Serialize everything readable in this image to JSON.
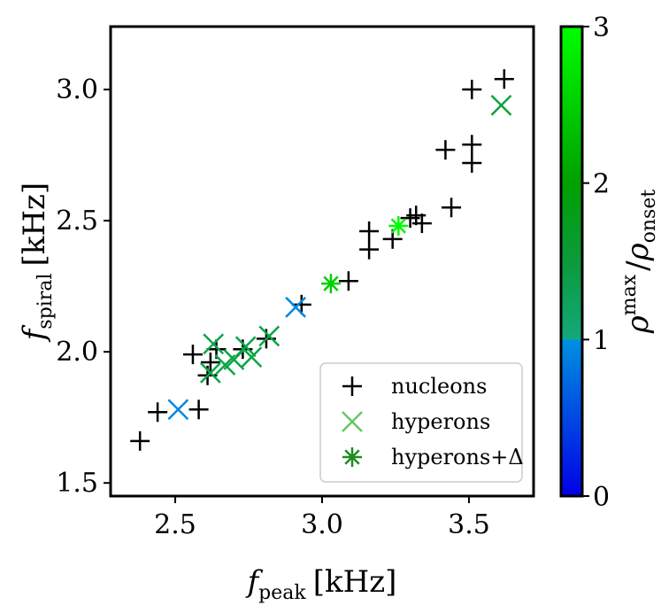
{
  "chart_data": {
    "type": "scatter",
    "xlabel": "f_peak [kHz]",
    "ylabel": "f_spiral [kHz]",
    "xlabel_parts": {
      "symbol": "f",
      "sub": "peak",
      "unit": "[kHz]"
    },
    "ylabel_parts": {
      "symbol": "f",
      "sub": "spiral",
      "unit": "[kHz]"
    },
    "xlim": [
      2.28,
      3.72
    ],
    "ylim": [
      1.45,
      3.24
    ],
    "xticks": [
      2.5,
      3.0,
      3.5
    ],
    "yticks": [
      1.5,
      2.0,
      2.5,
      3.0
    ],
    "xtick_labels": [
      "2.5",
      "3.0",
      "3.5"
    ],
    "ytick_labels": [
      "1.5",
      "2.0",
      "2.5",
      "3.0"
    ],
    "grid": false,
    "legend_position": "lower-right",
    "colorbar": {
      "label": "ρ^max / ρ_onset",
      "label_parts": {
        "num": "ρ",
        "num_sup": "max",
        "den": "ρ",
        "den_sub": "onset"
      },
      "range": [
        0,
        3
      ],
      "ticks": [
        0,
        1,
        2,
        3
      ],
      "tick_labels": [
        "0",
        "1",
        "2",
        "3"
      ],
      "colors": {
        "at0": "#0000e6",
        "at1": "#0090e0",
        "at1_upper": "#14a87a",
        "at2": "#00a000",
        "at3": "#00ff00"
      }
    },
    "series": [
      {
        "name": "nucleons",
        "marker": "plus",
        "color": "#000000",
        "points": [
          {
            "x": 2.38,
            "y": 1.66
          },
          {
            "x": 2.44,
            "y": 1.77
          },
          {
            "x": 2.56,
            "y": 1.99
          },
          {
            "x": 2.58,
            "y": 1.78
          },
          {
            "x": 2.61,
            "y": 1.91
          },
          {
            "x": 2.62,
            "y": 1.96
          },
          {
            "x": 2.64,
            "y": 2.01
          },
          {
            "x": 2.73,
            "y": 2.01
          },
          {
            "x": 2.81,
            "y": 2.05
          },
          {
            "x": 2.93,
            "y": 2.18
          },
          {
            "x": 3.09,
            "y": 2.27
          },
          {
            "x": 3.16,
            "y": 2.39
          },
          {
            "x": 3.16,
            "y": 2.46
          },
          {
            "x": 3.24,
            "y": 2.43
          },
          {
            "x": 3.3,
            "y": 2.51
          },
          {
            "x": 3.32,
            "y": 2.52
          },
          {
            "x": 3.34,
            "y": 2.49
          },
          {
            "x": 3.42,
            "y": 2.77
          },
          {
            "x": 3.44,
            "y": 2.55
          },
          {
            "x": 3.51,
            "y": 2.72
          },
          {
            "x": 3.51,
            "y": 2.79
          },
          {
            "x": 3.51,
            "y": 3.0
          },
          {
            "x": 3.62,
            "y": 3.04
          }
        ]
      },
      {
        "name": "hyperons",
        "marker": "x",
        "color": "#64c864",
        "points": [
          {
            "x": 2.51,
            "y": 1.78,
            "c": 0.95
          },
          {
            "x": 2.62,
            "y": 1.92,
            "c": 1.4
          },
          {
            "x": 2.63,
            "y": 2.03,
            "c": 1.35
          },
          {
            "x": 2.67,
            "y": 1.95,
            "c": 1.45
          },
          {
            "x": 2.7,
            "y": 1.97,
            "c": 1.4
          },
          {
            "x": 2.74,
            "y": 2.02,
            "c": 1.4
          },
          {
            "x": 2.76,
            "y": 1.98,
            "c": 1.45
          },
          {
            "x": 2.82,
            "y": 2.06,
            "c": 1.45
          },
          {
            "x": 2.91,
            "y": 2.17,
            "c": 0.95
          },
          {
            "x": 3.61,
            "y": 2.94,
            "c": 1.5
          }
        ]
      },
      {
        "name": "hyperons+Δ",
        "marker": "asterisk",
        "color": "#1f8c1f",
        "points": [
          {
            "x": 3.03,
            "y": 2.26,
            "c": 2.5
          },
          {
            "x": 3.26,
            "y": 2.48,
            "c": 2.95
          }
        ]
      }
    ]
  }
}
